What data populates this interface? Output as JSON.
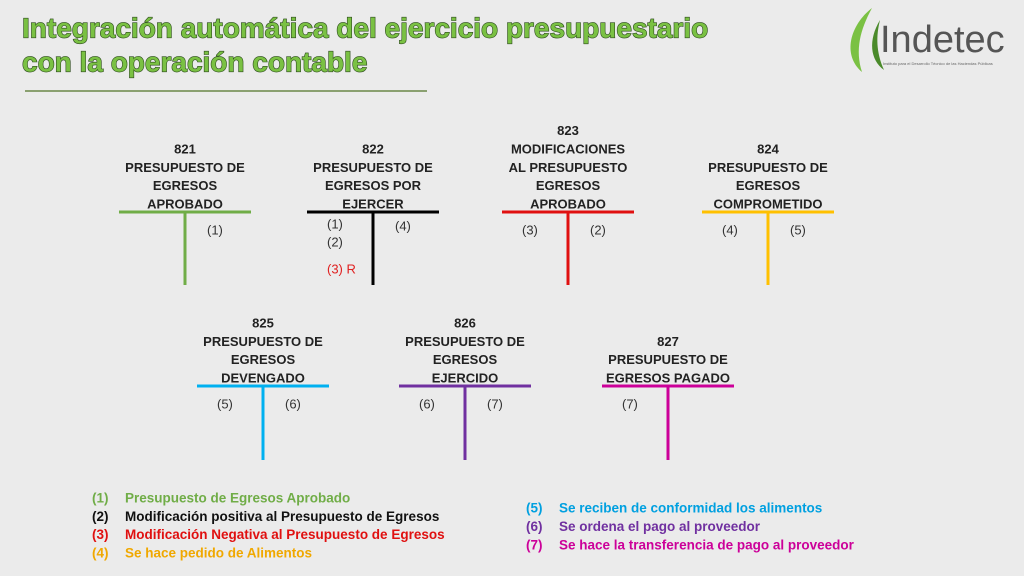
{
  "header": {
    "title_lines": [
      "Integración automática del ejercicio presupuestario",
      "con la operación contable"
    ],
    "logo": "Indetec",
    "logo_subtitle": "Instituto para el Desarrollo Técnico de las Haciendas Públicas"
  },
  "accounts": [
    {
      "code": "821",
      "name_lines": [
        "PRESUPUESTO  DE",
        "EGRESOS",
        "APROBADO"
      ],
      "color": "#70ad47",
      "debit": [],
      "credit": [
        {
          "text": "(1)",
          "color": "#333333"
        }
      ]
    },
    {
      "code": "822",
      "name_lines": [
        "PRESUPUESTO DE",
        "EGRESOS POR",
        "EJERCER"
      ],
      "color": "#000000",
      "debit": [
        {
          "text": "(1)",
          "color": "#333333"
        },
        {
          "text": "(2)",
          "color": "#333333"
        },
        {
          "text": "(3) R",
          "color": "#e02020"
        }
      ],
      "credit": [
        {
          "text": "(4)",
          "color": "#333333"
        }
      ]
    },
    {
      "code": "823",
      "name_lines": [
        "MODIFICACIONES",
        "AL  PRESUPUESTO",
        "EGRESOS",
        "APROBADO"
      ],
      "color": "#e01010",
      "debit": [
        {
          "text": "(3)",
          "color": "#333333"
        }
      ],
      "credit": [
        {
          "text": "(2)",
          "color": "#333333"
        }
      ]
    },
    {
      "code": "824",
      "name_lines": [
        "PRESUPUESTO DE",
        "EGRESOS",
        "COMPROMETIDO"
      ],
      "color": "#ffc000",
      "debit": [
        {
          "text": "(4)",
          "color": "#333333"
        }
      ],
      "credit": [
        {
          "text": "(5)",
          "color": "#333333"
        }
      ]
    },
    {
      "code": "825",
      "name_lines": [
        "PRESUPUESTO DE",
        "EGRESOS",
        "DEVENGADO"
      ],
      "color": "#00b0f0",
      "debit": [
        {
          "text": "(5)",
          "color": "#333333"
        }
      ],
      "credit": [
        {
          "text": "(6)",
          "color": "#333333"
        }
      ]
    },
    {
      "code": "826",
      "name_lines": [
        "PRESUPUESTO DE",
        "EGRESOS",
        "EJERCIDO"
      ],
      "color": "#7030a0",
      "debit": [
        {
          "text": "(6)",
          "color": "#333333"
        }
      ],
      "credit": [
        {
          "text": "(7)",
          "color": "#333333"
        }
      ]
    },
    {
      "code": "827",
      "name_lines": [
        "PRESUPUESTO DE",
        "EGRESOS PAGADO"
      ],
      "color": "#cc0099",
      "debit": [
        {
          "text": "(7)",
          "color": "#333333"
        }
      ],
      "credit": []
    }
  ],
  "legend": [
    {
      "num": "(1)",
      "text": "Presupuesto de Egresos Aprobado",
      "color": "#70ad47"
    },
    {
      "num": "(2)",
      "text": "Modificación positiva al Presupuesto de Egresos",
      "color": "#111111"
    },
    {
      "num": "(3)",
      "text": "Modificación Negativa al Presupuesto de Egresos",
      "color": "#e01010"
    },
    {
      "num": "(4)",
      "text": "Se hace pedido de Alimentos",
      "color": "#f0a800"
    },
    {
      "num": "(5)",
      "text": "Se reciben de conformidad los alimentos",
      "color": "#00a0e0"
    },
    {
      "num": "(6)",
      "text": "Se ordena el pago al proveedor",
      "color": "#7030a0"
    },
    {
      "num": "(7)",
      "text": "Se hace la transferencia de pago al proveedor",
      "color": "#cc0099"
    }
  ]
}
